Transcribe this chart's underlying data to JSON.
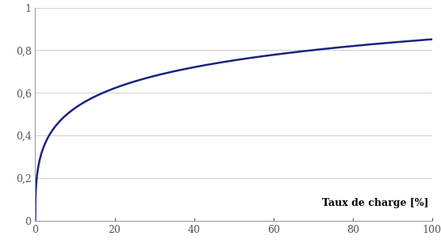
{
  "title": "",
  "xlabel": "Taux de charge [%]",
  "ylabel": "",
  "xlim": [
    0,
    100
  ],
  "ylim": [
    0,
    1
  ],
  "xticks": [
    0,
    20,
    40,
    60,
    80,
    100
  ],
  "yticks": [
    0,
    0.2,
    0.4,
    0.6,
    0.8,
    1.0
  ],
  "ytick_labels": [
    "0",
    "0,2",
    "0,4",
    "0,6",
    "0,8",
    "1"
  ],
  "xtick_labels": [
    "0",
    "20",
    "40",
    "60",
    "80",
    "100"
  ],
  "line_color": "#1a237e",
  "line_width": 1.8,
  "bg_color": "#ffffff",
  "grid_color": "#c8c8c8",
  "xlabel_fontsize": 9,
  "tick_fontsize": 9,
  "curve_A": 1.016,
  "curve_B": 0.95,
  "curve_power": 0.38
}
